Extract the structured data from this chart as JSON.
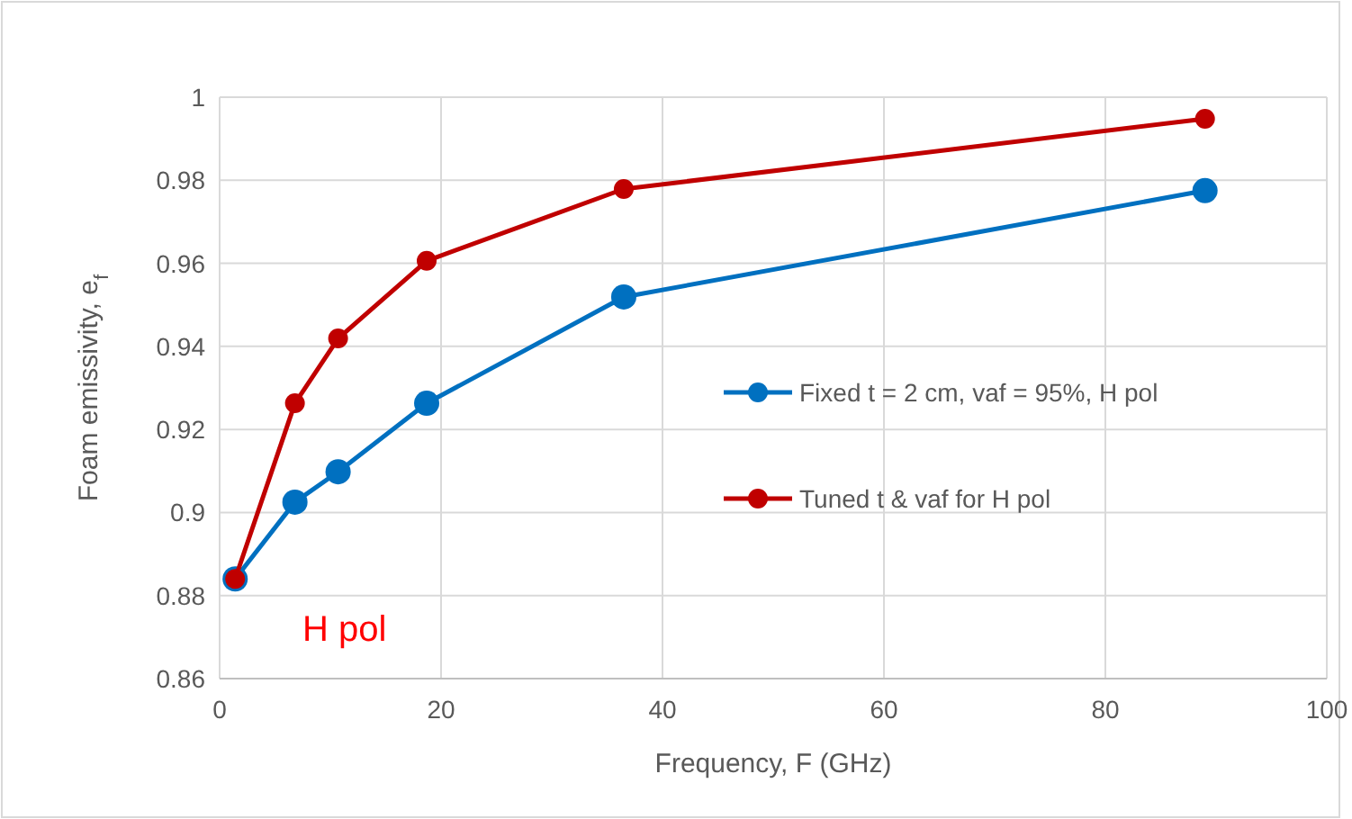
{
  "chart_data": {
    "type": "line",
    "xlabel": "Frequency, F (GHz)",
    "ylabel": "Foam emissivity, e$_{f}$",
    "x": [
      1.4,
      6.8,
      10.7,
      18.7,
      36.5,
      89
    ],
    "series": [
      {
        "name": "Fixed t = 2 cm, vaf = 95%, H pol",
        "color": "#0070c0",
        "values": [
          0.884,
          0.9025,
          0.9098,
          0.9263,
          0.9519,
          0.9775
        ]
      },
      {
        "name": "Tuned t & vaf for H pol",
        "color": "#c00000",
        "values": [
          0.884,
          0.9263,
          0.9419,
          0.9606,
          0.9779,
          0.9948
        ]
      }
    ],
    "xlim": [
      0,
      100
    ],
    "xticks": [
      0,
      20,
      40,
      60,
      80,
      100
    ],
    "ylim": [
      0.86,
      1
    ],
    "yticks": [
      0.86,
      0.88,
      0.9,
      0.92,
      0.94,
      0.96,
      0.98,
      1
    ],
    "grid": true,
    "legend": "right",
    "marker": "circle",
    "line_style": "solid",
    "annotations": [
      "H pol"
    ]
  }
}
